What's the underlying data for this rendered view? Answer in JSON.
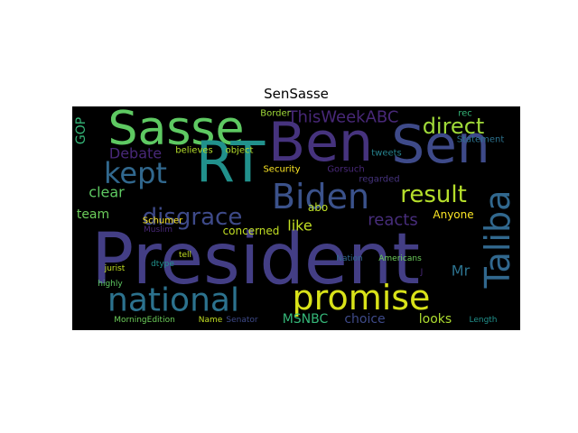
{
  "chart_data": {
    "type": "wordcloud",
    "title": "SenSasse",
    "words": [
      "President",
      "Ben",
      "Sen",
      "Sasse",
      "RT",
      "Biden",
      "Taliba",
      "promise",
      "national",
      "kept",
      "disgrace",
      "result",
      "direct",
      "ThisWeekABC",
      "Debate",
      "clear",
      "team",
      "GOP",
      "reacts",
      "like",
      "abo",
      "concerned",
      "Anyone",
      "Mr",
      "MSNBC",
      "choice",
      "looks",
      "Schumer",
      "Security",
      "Gorsuch",
      "believes",
      "object",
      "Border",
      "tweets",
      "rec",
      "Statement",
      "regarded",
      "Muslim",
      "tell",
      "dtype",
      "jurist",
      "highly",
      "Nation",
      "Americans",
      "J",
      "MorningEdition",
      "Name",
      "Senator",
      "Length"
    ]
  }
}
